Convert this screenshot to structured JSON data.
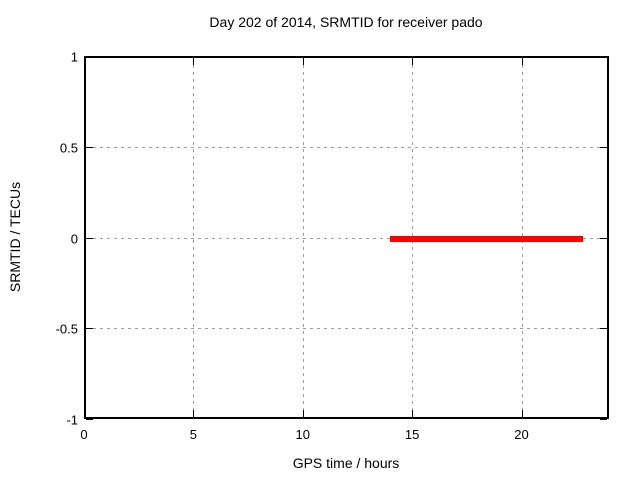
{
  "chart_data": {
    "type": "line",
    "title": "Day 202 of 2014, SRMTID for receiver pado",
    "xlabel": "GPS time / hours",
    "ylabel": "SRMTID / TECUs",
    "xlim": [
      0,
      24
    ],
    "ylim": [
      -1,
      1
    ],
    "xticks": [
      {
        "value": 0,
        "label": "0"
      },
      {
        "value": 5,
        "label": "5"
      },
      {
        "value": 10,
        "label": "10"
      },
      {
        "value": 15,
        "label": "15"
      },
      {
        "value": 20,
        "label": "20"
      }
    ],
    "yticks": [
      {
        "value": 1,
        "label": "1"
      },
      {
        "value": 0.5,
        "label": "0.5"
      },
      {
        "value": 0,
        "label": "0"
      },
      {
        "value": -0.5,
        "label": "-0.5"
      },
      {
        "value": -1,
        "label": "-1"
      }
    ],
    "grid": true,
    "grid_color": "#9e9e9e",
    "border_color": "#000000",
    "background_color": "#ffffff",
    "legend": "none",
    "series": [
      {
        "name": "SRMTID",
        "color": "#ff0000",
        "linewidth": 6,
        "x": [
          14.0,
          22.8
        ],
        "y": [
          0,
          0
        ]
      }
    ]
  }
}
